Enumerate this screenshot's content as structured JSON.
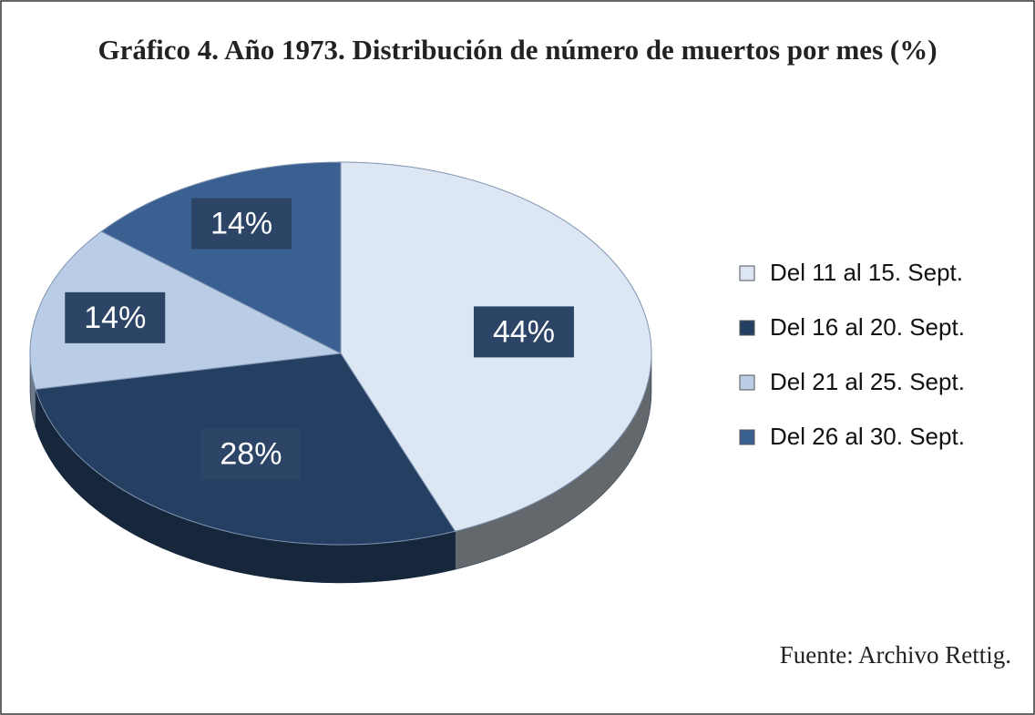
{
  "chart_data": {
    "type": "pie",
    "title": "Gráfico 4. Año 1973. Distribución de número de muertos por mes (%)",
    "categories": [
      "Del 11 al 15. Sept.",
      "Del 16 al 20. Sept.",
      "Del 21 al 25. Sept.",
      "Del 26 al 30. Sept."
    ],
    "values": [
      44,
      28,
      14,
      14
    ],
    "value_labels": [
      "44%",
      "28%",
      "14%",
      "14%"
    ],
    "colors": [
      "#dde7f3",
      "#253f63",
      "#b9cde6",
      "#3a5f91"
    ],
    "source": "Fuente: Archivo Rettig."
  }
}
